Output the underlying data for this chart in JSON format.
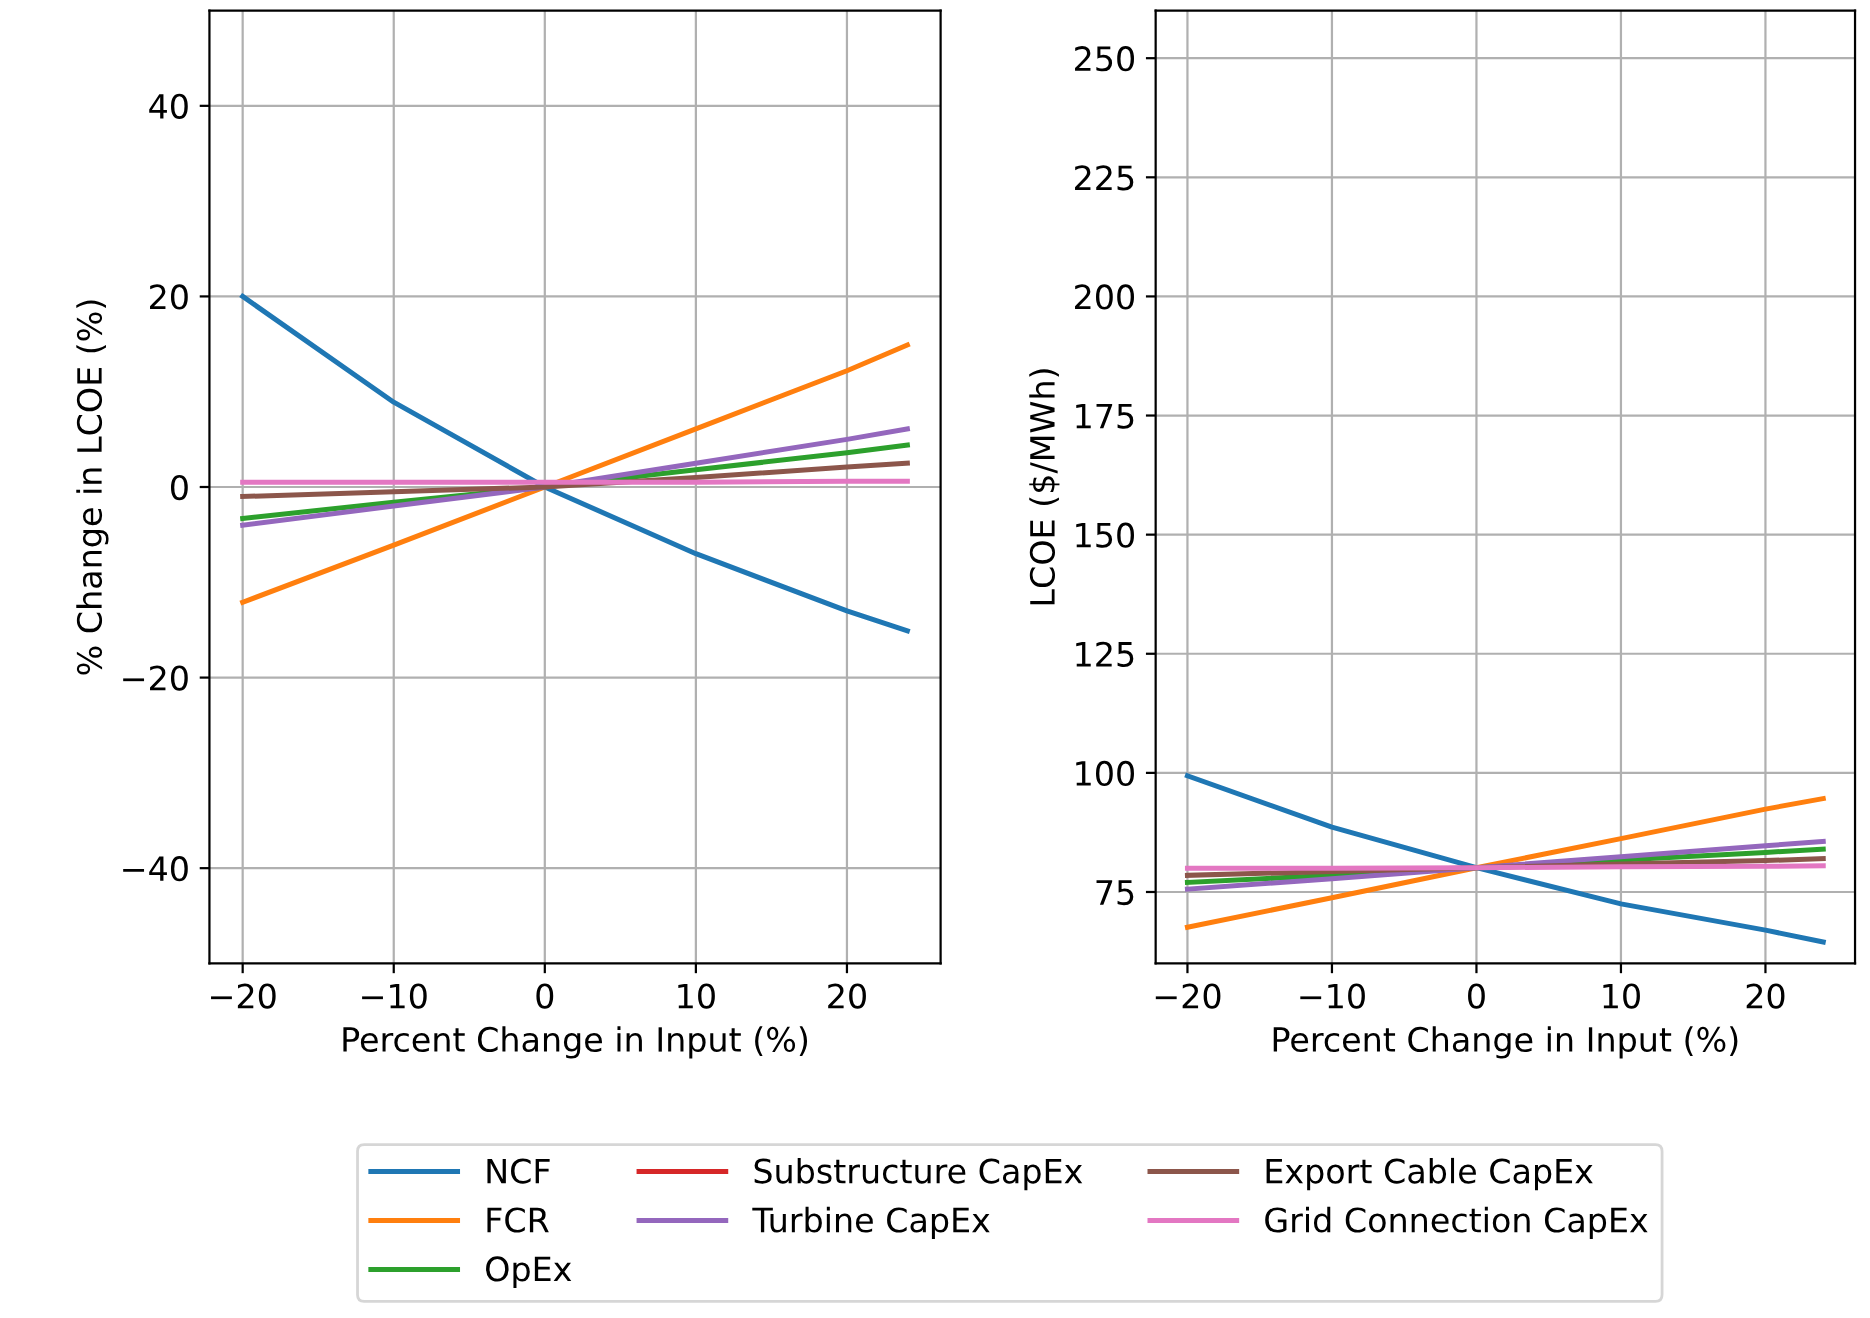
{
  "chart_data": [
    {
      "type": "line",
      "xlabel": "Percent Change in Input (%)",
      "ylabel": "% Change in LCOE (%)",
      "xlim": [
        -22.2,
        26.2
      ],
      "ylim": [
        -50,
        50
      ],
      "xticks": [
        -20,
        -10,
        0,
        10,
        20
      ],
      "yticks": [
        -40,
        -20,
        0,
        20,
        40
      ],
      "grid": true,
      "legend": "bottom",
      "line_style": "solid",
      "x": [
        -20,
        -10,
        0,
        10,
        20,
        24
      ],
      "series": [
        {
          "name": "NCF",
          "color": "#1f77b4",
          "values": [
            20,
            8.9,
            0,
            -7.0,
            -13.0,
            -15.1
          ]
        },
        {
          "name": "FCR",
          "color": "#ff7f0e",
          "values": [
            -12.1,
            -6.1,
            0,
            6.1,
            12.2,
            14.9
          ]
        },
        {
          "name": "OpEx",
          "color": "#2ca02c",
          "values": [
            -3.3,
            -1.6,
            0,
            1.8,
            3.6,
            4.4
          ]
        },
        {
          "name": "Substructure CapEx",
          "color": "#d62728",
          "values": [
            null,
            null,
            null,
            null,
            null,
            null
          ]
        },
        {
          "name": "Turbine CapEx",
          "color": "#9467bd",
          "values": [
            -4.0,
            -2.0,
            0,
            2.5,
            5.0,
            6.1
          ]
        },
        {
          "name": "Export Cable CapEx",
          "color": "#8c564b",
          "values": [
            -1.0,
            -0.5,
            0,
            1.0,
            2.1,
            2.5
          ]
        },
        {
          "name": "Grid Connection CapEx",
          "color": "#e377c2",
          "values": [
            0.5,
            0.5,
            0.5,
            0.5,
            0.6,
            0.6
          ]
        }
      ]
    },
    {
      "type": "line",
      "xlabel": "Percent Change in Input (%)",
      "ylabel": "LCOE ($/MWh)",
      "xlim": [
        -22.2,
        26.2
      ],
      "ylim": [
        60,
        260
      ],
      "xticks": [
        -20,
        -10,
        0,
        10,
        20
      ],
      "yticks": [
        75,
        100,
        125,
        150,
        175,
        200,
        225,
        250
      ],
      "grid": true,
      "line_style": "solid",
      "x": [
        -20,
        -10,
        0,
        10,
        20,
        24
      ],
      "series": [
        {
          "color": "#1f77b4",
          "values": [
            99.4,
            88.6,
            80.1,
            72.5,
            67,
            64.5
          ]
        },
        {
          "color": "#ff7f0e",
          "values": [
            67.6,
            73.8,
            80.1,
            86.2,
            92.4,
            94.6
          ]
        },
        {
          "color": "#2ca02c",
          "values": [
            77,
            78.5,
            80.1,
            81.7,
            83.3,
            84
          ]
        },
        {
          "color": "#d62728",
          "values": [
            null,
            null,
            null,
            null,
            null,
            null
          ]
        },
        {
          "color": "#9467bd",
          "values": [
            75.6,
            77.8,
            80.1,
            82.4,
            84.7,
            85.6
          ]
        },
        {
          "color": "#8c564b",
          "values": [
            78.5,
            79.3,
            80.1,
            80.9,
            81.6,
            82
          ]
        },
        {
          "color": "#e377c2",
          "values": [
            80,
            80,
            80.1,
            80.3,
            80.4,
            80.5
          ]
        }
      ]
    }
  ]
}
